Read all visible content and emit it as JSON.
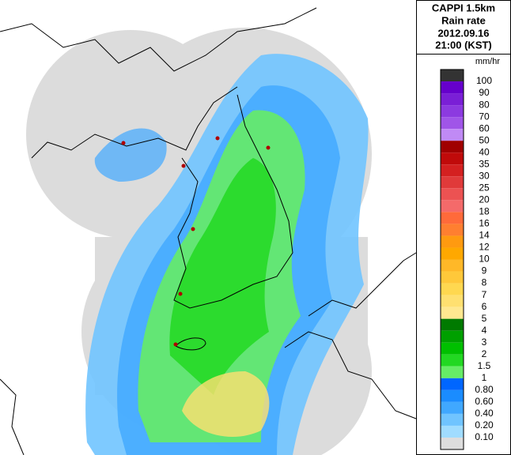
{
  "panel": {
    "title_lines": [
      "CAPPI 1.5km",
      "Rain rate",
      "2012.09.16",
      "21:00 (KST)"
    ],
    "unit": "mm/hr"
  },
  "legend": {
    "labels": [
      "100",
      "90",
      "80",
      "70",
      "60",
      "50",
      "40",
      "35",
      "30",
      "25",
      "20",
      "18",
      "16",
      "14",
      "12",
      "10",
      "9",
      "8",
      "7",
      "6",
      "5",
      "4",
      "3",
      "2",
      "1.5",
      "1",
      "0.80",
      "0.60",
      "0.40",
      "0.20",
      "0.10"
    ],
    "colors": [
      "#333333",
      "#6600cc",
      "#7a1fd6",
      "#8c3ae0",
      "#a055e8",
      "#c08af5",
      "#a00000",
      "#c00a0a",
      "#d42020",
      "#e03a3a",
      "#ec5252",
      "#f46a6a",
      "#ff6a3a",
      "#ff7f30",
      "#ff9a10",
      "#ffa800",
      "#ffb828",
      "#ffc83a",
      "#ffd850",
      "#ffe070",
      "#ffe890",
      "#007a00",
      "#00a000",
      "#00c000",
      "#22d822",
      "#66ec66",
      "#0066ff",
      "#1a8cff",
      "#40a8ff",
      "#70c4ff",
      "#a0dcff",
      "#dddddd"
    ]
  }
}
